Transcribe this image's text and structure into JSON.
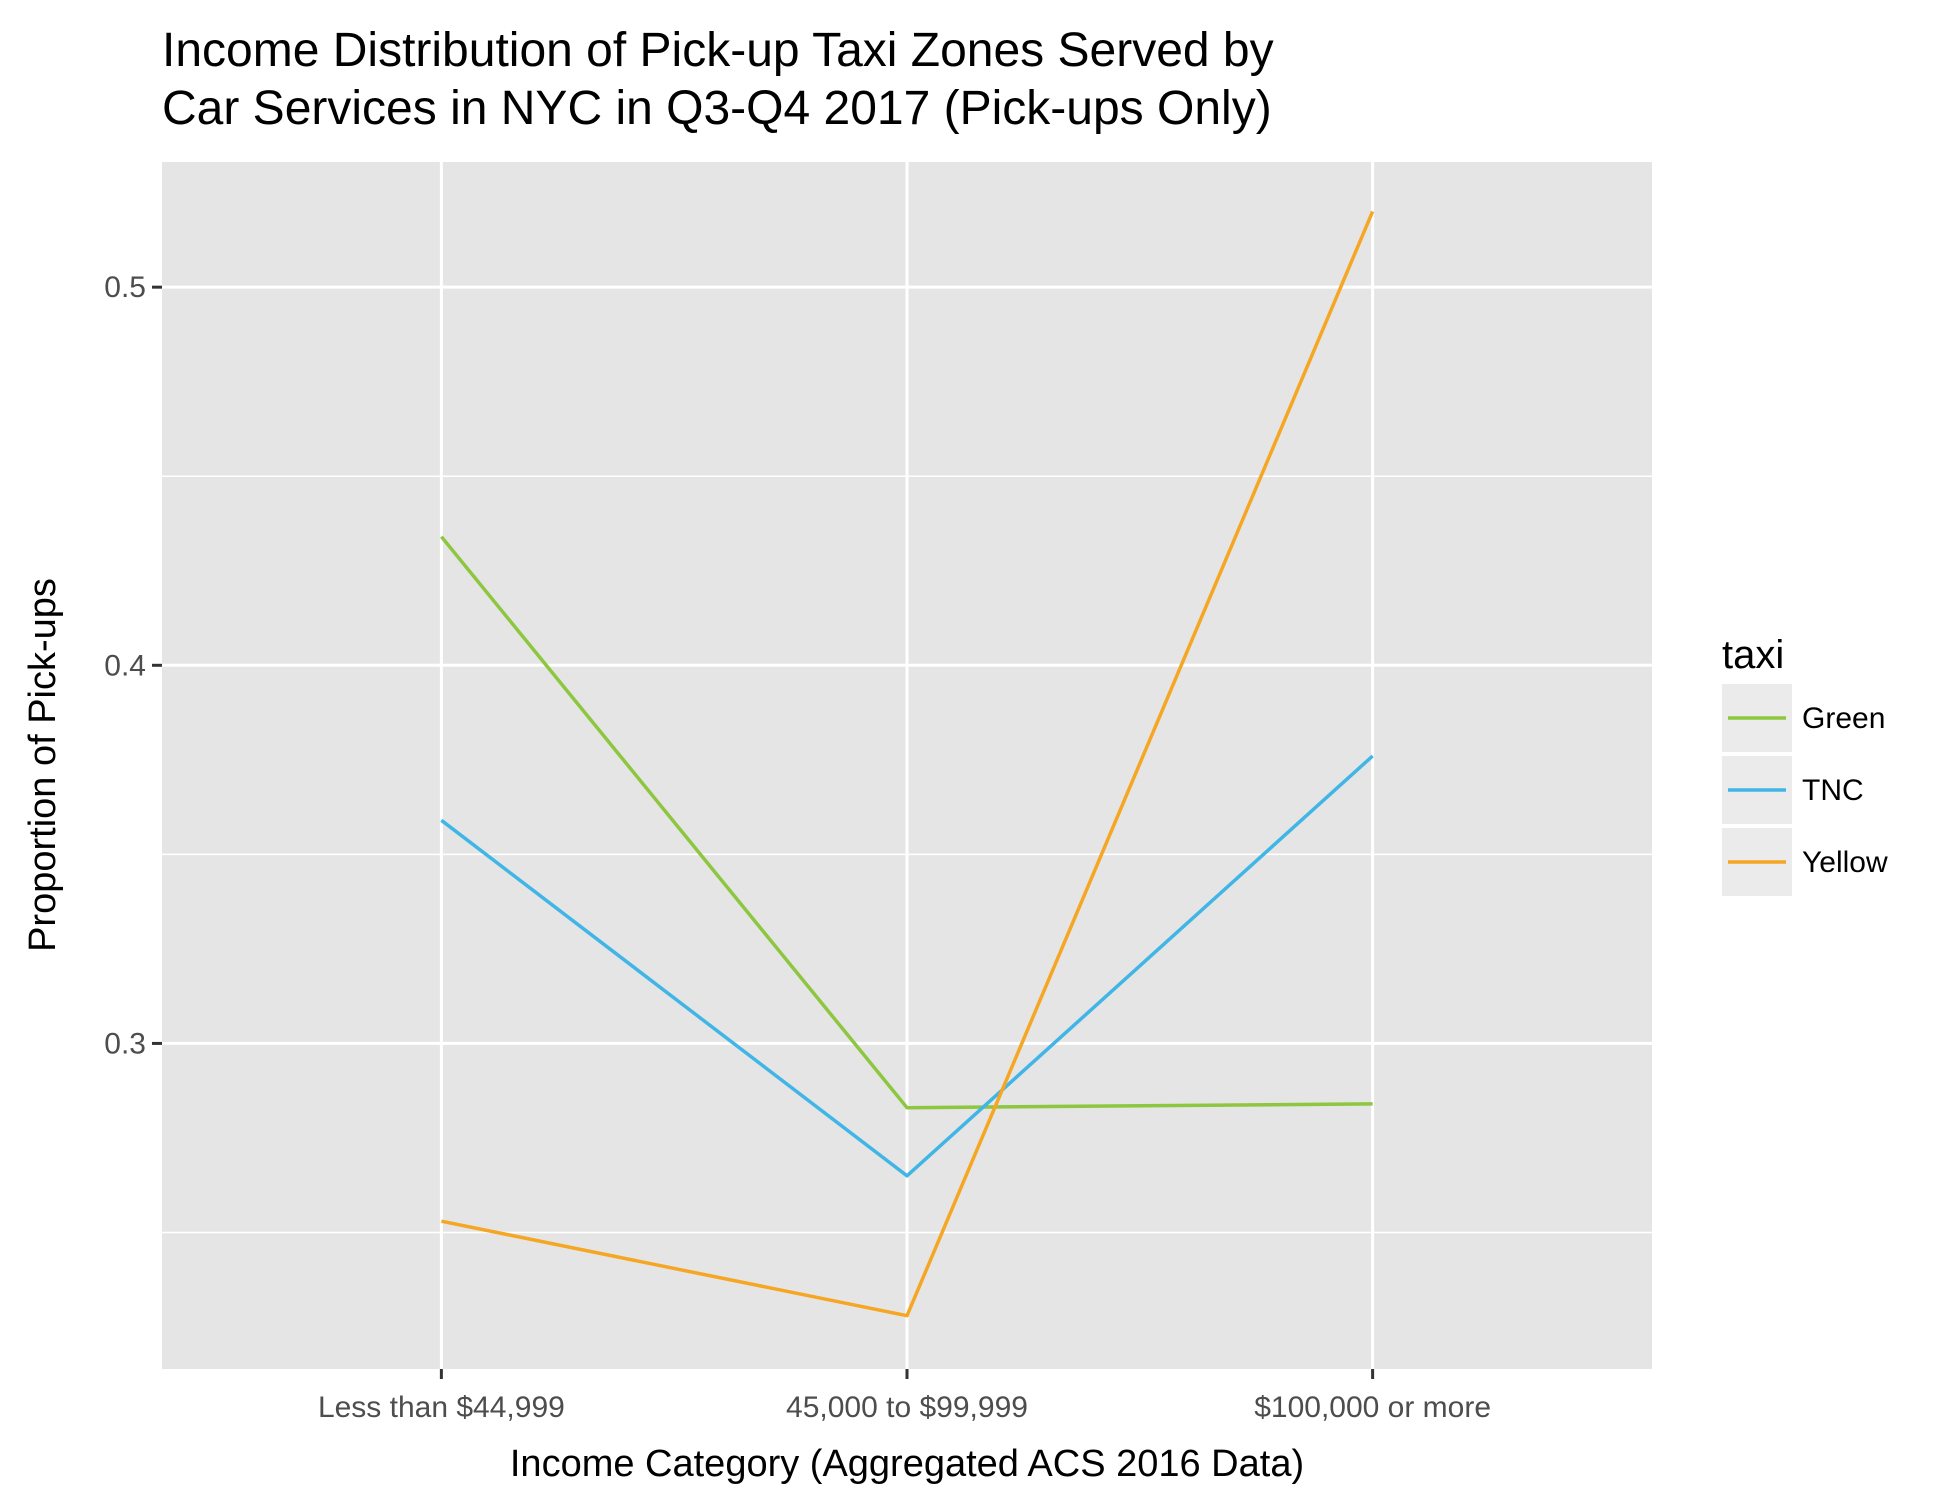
{
  "chart_data": {
    "type": "line",
    "title_lines": [
      "Income Distribution of Pick-up Taxi Zones Served by",
      "Car Services in NYC in Q3-Q4 2017 (Pick-ups Only)"
    ],
    "xlabel": "Income Category (Aggregated ACS 2016 Data)",
    "ylabel": "Proportion of Pick-ups",
    "categories": [
      "Less than $44,999",
      "45,000 to $99,999",
      "$100,000 or more"
    ],
    "ylim": [
      0.2139,
      0.5331
    ],
    "yticks": [
      0.3,
      0.4,
      0.5
    ],
    "ytick_labels": [
      "0.3",
      "0.4",
      "0.5"
    ],
    "grid": true,
    "legend": {
      "title": "taxi",
      "position": "right"
    },
    "series": [
      {
        "name": "Green",
        "color": "#8dc63f",
        "values": [
          0.434,
          0.283,
          0.284
        ]
      },
      {
        "name": "TNC",
        "color": "#41b6e6",
        "values": [
          0.359,
          0.265,
          0.376
        ]
      },
      {
        "name": "Yellow",
        "color": "#f5a623",
        "values": [
          0.253,
          0.228,
          0.52
        ]
      }
    ]
  }
}
